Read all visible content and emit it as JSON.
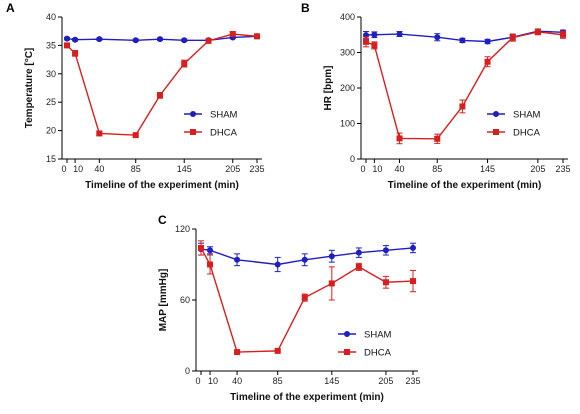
{
  "chart_data": [
    {
      "panel_label": "A",
      "type": "line",
      "xlabel": "Timeline of the experiment (min)",
      "ylabel": "Temperature [°C]",
      "ylim": [
        15,
        40
      ],
      "yticks": [
        15,
        20,
        25,
        30,
        35,
        40
      ],
      "xticks": [
        0,
        10,
        40,
        85,
        145,
        205,
        235
      ],
      "xtick_labels": [
        "0",
        "10",
        "40",
        "85",
        "145",
        "205",
        "235"
      ],
      "legend_position": "right",
      "series": [
        {
          "name": "SHAM",
          "color": "#1f1fbf",
          "marker": "circle",
          "x": [
            0,
            10,
            40,
            85,
            115,
            145,
            175,
            205,
            235
          ],
          "y": [
            36.2,
            36.0,
            36.1,
            35.9,
            36.1,
            35.9,
            35.9,
            36.4,
            36.6
          ],
          "err": [
            0.2,
            0.2,
            0.2,
            0.2,
            0.2,
            0.2,
            0.2,
            0.2,
            0.2
          ]
        },
        {
          "name": "DHCA",
          "color": "#d62020",
          "marker": "square",
          "x": [
            0,
            10,
            40,
            85,
            115,
            145,
            175,
            205,
            235
          ],
          "y": [
            35.0,
            33.6,
            19.5,
            19.2,
            26.2,
            31.8,
            35.8,
            37.0,
            36.6
          ],
          "err": [
            0.3,
            0.5,
            0.3,
            0.3,
            0.5,
            0.6,
            0.4,
            0.4,
            0.3
          ]
        }
      ]
    },
    {
      "panel_label": "B",
      "type": "line",
      "xlabel": "Timeline of the experiment (min)",
      "ylabel": "HR [bpm]",
      "ylim": [
        0,
        400
      ],
      "yticks": [
        0,
        100,
        200,
        300,
        400
      ],
      "xticks": [
        0,
        10,
        40,
        85,
        145,
        205,
        235
      ],
      "xtick_labels": [
        "0",
        "10",
        "40",
        "85",
        "145",
        "205",
        "235"
      ],
      "legend_position": "right",
      "series": [
        {
          "name": "SHAM",
          "color": "#1f1fbf",
          "marker": "circle",
          "x": [
            0,
            10,
            40,
            85,
            115,
            145,
            175,
            205,
            235
          ],
          "y": [
            349,
            350,
            352,
            343,
            334,
            331,
            343,
            360,
            357
          ],
          "err": [
            10,
            8,
            7,
            10,
            6,
            6,
            8,
            6,
            6
          ]
        },
        {
          "name": "DHCA",
          "color": "#d62020",
          "marker": "square",
          "x": [
            0,
            10,
            40,
            85,
            115,
            145,
            175,
            205,
            235
          ],
          "y": [
            330,
            320,
            58,
            57,
            148,
            274,
            342,
            358,
            350
          ],
          "err": [
            14,
            10,
            15,
            13,
            18,
            14,
            10,
            8,
            10
          ]
        }
      ]
    },
    {
      "panel_label": "C",
      "type": "line",
      "xlabel": "Timeline of the experiment (min)",
      "ylabel": "MAP [mmHg]",
      "ylim": [
        0,
        120
      ],
      "yticks": [
        0,
        60,
        120
      ],
      "xticks": [
        0,
        10,
        40,
        85,
        145,
        205,
        235
      ],
      "xtick_labels": [
        "0",
        "10",
        "40",
        "85",
        "145",
        "205",
        "235"
      ],
      "legend_position": "right",
      "series": [
        {
          "name": "SHAM",
          "color": "#1f1fbf",
          "marker": "circle",
          "x": [
            0,
            10,
            40,
            85,
            115,
            145,
            175,
            205,
            235
          ],
          "y": [
            103,
            102,
            94,
            90,
            94,
            97,
            100,
            102,
            104
          ],
          "err": [
            5,
            3,
            5,
            6,
            5,
            5,
            4,
            4,
            4
          ]
        },
        {
          "name": "DHCA",
          "color": "#d62020",
          "marker": "square",
          "x": [
            0,
            10,
            40,
            85,
            115,
            145,
            175,
            205,
            235
          ],
          "y": [
            104,
            90,
            16,
            17,
            62,
            74,
            88,
            75,
            76
          ],
          "err": [
            6,
            8,
            1,
            1,
            3,
            14,
            3,
            5,
            9
          ]
        }
      ]
    }
  ]
}
